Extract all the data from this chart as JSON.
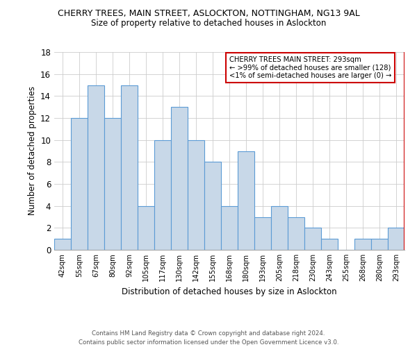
{
  "title": "CHERRY TREES, MAIN STREET, ASLOCKTON, NOTTINGHAM, NG13 9AL",
  "subtitle": "Size of property relative to detached houses in Aslockton",
  "xlabel": "Distribution of detached houses by size in Aslockton",
  "ylabel": "Number of detached properties",
  "categories": [
    "42sqm",
    "55sqm",
    "67sqm",
    "80sqm",
    "92sqm",
    "105sqm",
    "117sqm",
    "130sqm",
    "142sqm",
    "155sqm",
    "168sqm",
    "180sqm",
    "193sqm",
    "205sqm",
    "218sqm",
    "230sqm",
    "243sqm",
    "255sqm",
    "268sqm",
    "280sqm",
    "293sqm"
  ],
  "values": [
    1,
    12,
    15,
    12,
    15,
    4,
    10,
    13,
    10,
    8,
    4,
    9,
    3,
    4,
    3,
    2,
    1,
    0,
    1,
    1,
    2
  ],
  "bar_color": "#c8d8e8",
  "bar_edge_color": "#5b9bd5",
  "highlight_index": 20,
  "highlight_line_color": "#cc0000",
  "ylim": [
    0,
    18
  ],
  "yticks": [
    0,
    2,
    4,
    6,
    8,
    10,
    12,
    14,
    16,
    18
  ],
  "annotation_box_text_line1": "CHERRY TREES MAIN STREET: 293sqm",
  "annotation_box_text_line2": "← >99% of detached houses are smaller (128)",
  "annotation_box_text_line3": "<1% of semi-detached houses are larger (0) →",
  "annotation_box_edge_color": "#cc0000",
  "footer_line1": "Contains HM Land Registry data © Crown copyright and database right 2024.",
  "footer_line2": "Contains public sector information licensed under the Open Government Licence v3.0.",
  "background_color": "#ffffff",
  "grid_color": "#cccccc"
}
